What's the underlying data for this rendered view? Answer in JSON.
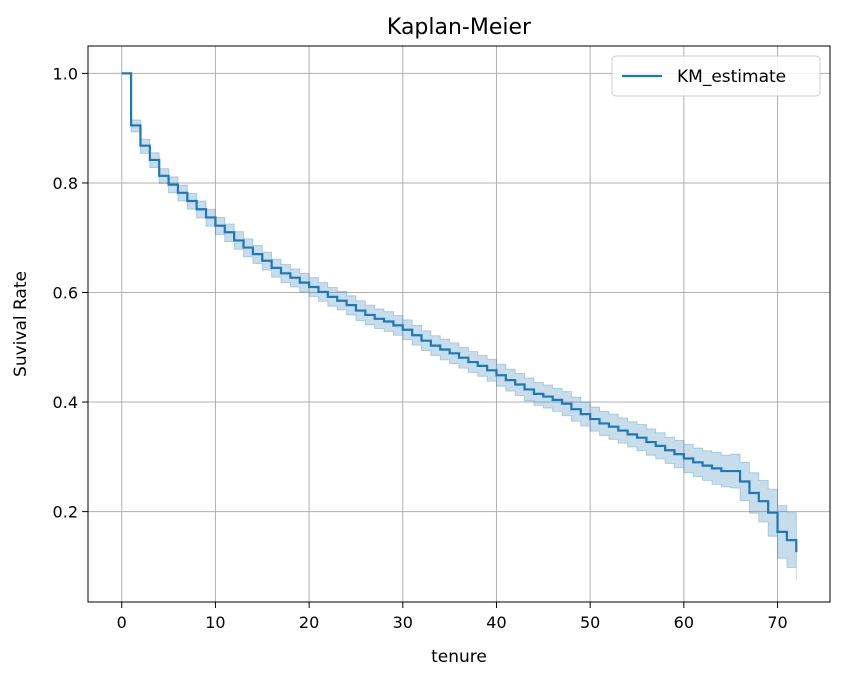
{
  "chart_data": {
    "type": "line",
    "title": "Kaplan-Meier",
    "xlabel": "tenure",
    "ylabel": "Suvival Rate",
    "xlim": [
      -3.6,
      75.6
    ],
    "ylim": [
      0.035,
      1.05
    ],
    "xticks": [
      0,
      10,
      20,
      30,
      40,
      50,
      60,
      70
    ],
    "xtick_labels": [
      "0",
      "10",
      "20",
      "30",
      "40",
      "50",
      "60",
      "70"
    ],
    "yticks": [
      0.2,
      0.4,
      0.6,
      0.8,
      1.0
    ],
    "ytick_labels": [
      "0.2",
      "0.4",
      "0.6",
      "0.8",
      "1.0"
    ],
    "grid": true,
    "legend": {
      "placement": "top-right",
      "entries": [
        "KM_estimate"
      ]
    },
    "colors": {
      "line": "#1f77b4",
      "band": "#1f77b4",
      "grid": "#b0b0b0"
    },
    "series": [
      {
        "name": "KM_estimate",
        "style": "step-post",
        "x": [
          0,
          1,
          2,
          3,
          4,
          5,
          6,
          7,
          8,
          9,
          10,
          11,
          12,
          13,
          14,
          15,
          16,
          17,
          18,
          19,
          20,
          21,
          22,
          23,
          24,
          25,
          26,
          27,
          28,
          29,
          30,
          31,
          32,
          33,
          34,
          35,
          36,
          37,
          38,
          39,
          40,
          41,
          42,
          43,
          44,
          45,
          46,
          47,
          48,
          49,
          50,
          51,
          52,
          53,
          54,
          55,
          56,
          57,
          58,
          59,
          60,
          61,
          62,
          63,
          64,
          65,
          66,
          67,
          68,
          69,
          70,
          71,
          72
        ],
        "y": [
          1.0,
          0.905,
          0.868,
          0.842,
          0.813,
          0.797,
          0.782,
          0.767,
          0.752,
          0.737,
          0.722,
          0.71,
          0.695,
          0.682,
          0.67,
          0.658,
          0.645,
          0.635,
          0.627,
          0.618,
          0.61,
          0.601,
          0.592,
          0.585,
          0.577,
          0.567,
          0.559,
          0.552,
          0.547,
          0.54,
          0.532,
          0.522,
          0.512,
          0.503,
          0.496,
          0.489,
          0.481,
          0.473,
          0.466,
          0.458,
          0.449,
          0.44,
          0.432,
          0.423,
          0.415,
          0.41,
          0.404,
          0.397,
          0.387,
          0.378,
          0.369,
          0.361,
          0.355,
          0.348,
          0.341,
          0.335,
          0.327,
          0.32,
          0.312,
          0.305,
          0.297,
          0.29,
          0.284,
          0.279,
          0.274,
          0.274,
          0.255,
          0.234,
          0.219,
          0.198,
          0.163,
          0.148,
          0.126
        ],
        "ci_lower": [
          1.0,
          0.893,
          0.854,
          0.828,
          0.799,
          0.782,
          0.767,
          0.752,
          0.736,
          0.721,
          0.706,
          0.693,
          0.679,
          0.665,
          0.653,
          0.641,
          0.628,
          0.618,
          0.61,
          0.601,
          0.593,
          0.584,
          0.575,
          0.568,
          0.559,
          0.549,
          0.541,
          0.534,
          0.529,
          0.522,
          0.514,
          0.504,
          0.494,
          0.485,
          0.477,
          0.47,
          0.462,
          0.454,
          0.447,
          0.438,
          0.429,
          0.42,
          0.412,
          0.402,
          0.394,
          0.389,
          0.383,
          0.375,
          0.365,
          0.356,
          0.347,
          0.339,
          0.332,
          0.325,
          0.318,
          0.311,
          0.303,
          0.296,
          0.288,
          0.28,
          0.271,
          0.264,
          0.257,
          0.25,
          0.245,
          0.243,
          0.22,
          0.197,
          0.181,
          0.155,
          0.115,
          0.098,
          0.075
        ],
        "ci_upper": [
          1.0,
          0.915,
          0.88,
          0.855,
          0.826,
          0.811,
          0.796,
          0.781,
          0.767,
          0.752,
          0.737,
          0.725,
          0.711,
          0.698,
          0.686,
          0.674,
          0.661,
          0.651,
          0.643,
          0.635,
          0.627,
          0.618,
          0.609,
          0.602,
          0.594,
          0.585,
          0.577,
          0.57,
          0.565,
          0.558,
          0.55,
          0.54,
          0.53,
          0.521,
          0.515,
          0.508,
          0.5,
          0.492,
          0.485,
          0.478,
          0.469,
          0.46,
          0.452,
          0.444,
          0.436,
          0.431,
          0.425,
          0.419,
          0.409,
          0.4,
          0.391,
          0.383,
          0.378,
          0.371,
          0.364,
          0.359,
          0.351,
          0.344,
          0.336,
          0.33,
          0.323,
          0.316,
          0.311,
          0.308,
          0.303,
          0.305,
          0.29,
          0.271,
          0.257,
          0.241,
          0.211,
          0.198,
          0.19
        ]
      }
    ]
  }
}
